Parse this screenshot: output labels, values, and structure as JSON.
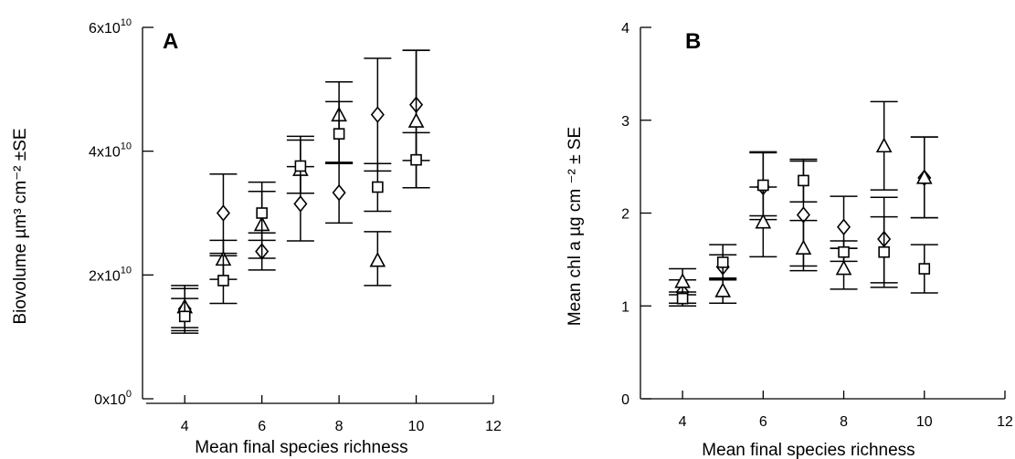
{
  "chart_data": [
    {
      "type": "scatter",
      "panel_label": "A",
      "xlabel": "Mean final species richness",
      "ylabel": "Biovolume µm³ cm⁻² ±SE",
      "xlim": [
        3,
        12
      ],
      "ylim": [
        0,
        60000000000
      ],
      "x_ticks": [
        4,
        6,
        8,
        10,
        12
      ],
      "y_ticks": [
        0,
        20000000000,
        40000000000,
        60000000000
      ],
      "y_tick_labels": [
        {
          "mantissa": "0x10",
          "exp": "0"
        },
        {
          "mantissa": "2x10",
          "exp": "10"
        },
        {
          "mantissa": "4x10",
          "exp": "10"
        },
        {
          "mantissa": "6x10",
          "exp": "10"
        }
      ],
      "grid": false,
      "series": [
        {
          "marker": "diamond",
          "points": [
            {
              "x": 4,
              "y": 14500000000,
              "lo": 11500000000,
              "hi": 17800000000
            },
            {
              "x": 5,
              "y": 30000000000,
              "lo": 23500000000,
              "hi": 36300000000
            },
            {
              "x": 6,
              "y": 23800000000,
              "lo": 20800000000,
              "hi": 26800000000
            },
            {
              "x": 7,
              "y": 31500000000,
              "lo": 25500000000,
              "hi": 37500000000
            },
            {
              "x": 8,
              "y": 33300000000,
              "lo": 28400000000,
              "hi": 38200000000
            },
            {
              "x": 9,
              "y": 45900000000,
              "lo": 36800000000,
              "hi": 55000000000
            },
            {
              "x": 10,
              "y": 47500000000,
              "lo": 38500000000,
              "hi": 56300000000
            }
          ]
        },
        {
          "marker": "triangle",
          "points": [
            {
              "x": 4,
              "y": 14800000000,
              "lo": 10600000000,
              "hi": 18300000000
            },
            {
              "x": 5,
              "y": 22500000000,
              "lo": 19300000000,
              "hi": 25600000000
            },
            {
              "x": 6,
              "y": 28100000000,
              "lo": 22700000000,
              "hi": 33500000000
            },
            {
              "x": 7,
              "y": 37000000000,
              "lo": 33200000000,
              "hi": 41800000000
            },
            {
              "x": 8,
              "y": 45800000000,
              "lo": 38100000000,
              "hi": 51200000000
            },
            {
              "x": 9,
              "y": 22300000000,
              "lo": 18300000000,
              "hi": 27000000000
            },
            {
              "x": 10,
              "y": 44800000000,
              "lo": 34100000000,
              "hi": 56300000000
            }
          ]
        },
        {
          "marker": "square",
          "points": [
            {
              "x": 4,
              "y": 13300000000,
              "lo": 11000000000,
              "hi": 16200000000
            },
            {
              "x": 5,
              "y": 19100000000,
              "lo": 15400000000,
              "hi": 23100000000
            },
            {
              "x": 6,
              "y": 30000000000,
              "lo": 25600000000,
              "hi": 35000000000
            },
            {
              "x": 7,
              "y": 37600000000,
              "lo": 33200000000,
              "hi": 42400000000
            },
            {
              "x": 8,
              "y": 42800000000,
              "lo": 38000000000,
              "hi": 48000000000
            },
            {
              "x": 9,
              "y": 34200000000,
              "lo": 30300000000,
              "hi": 38000000000
            },
            {
              "x": 10,
              "y": 38600000000,
              "lo": 34100000000,
              "hi": 43000000000
            }
          ]
        }
      ]
    },
    {
      "type": "scatter",
      "panel_label": "B",
      "xlabel": "Mean final species richness",
      "ylabel": "Mean chl a µg cm ⁻² ± SE",
      "xlim": [
        3,
        12
      ],
      "ylim": [
        0,
        4
      ],
      "x_ticks": [
        4,
        6,
        8,
        10,
        12
      ],
      "y_ticks": [
        0,
        1,
        2,
        3,
        4
      ],
      "grid": false,
      "series": [
        {
          "marker": "diamond",
          "points": [
            {
              "x": 4,
              "y": 1.15,
              "lo": 1.03,
              "hi": 1.28
            },
            {
              "x": 5,
              "y": 1.42,
              "lo": 1.3,
              "hi": 1.55
            },
            {
              "x": 6,
              "y": 2.28,
              "lo": 1.93,
              "hi": 2.66
            },
            {
              "x": 7,
              "y": 1.98,
              "lo": 1.43,
              "hi": 2.56
            },
            {
              "x": 8,
              "y": 1.85,
              "lo": 1.62,
              "hi": 2.18
            },
            {
              "x": 9,
              "y": 1.72,
              "lo": 1.25,
              "hi": 2.17
            },
            {
              "x": 10,
              "y": 2.38,
              "lo": 1.95,
              "hi": 2.82
            }
          ]
        },
        {
          "marker": "triangle",
          "points": [
            {
              "x": 4,
              "y": 1.26,
              "lo": 1.12,
              "hi": 1.4
            },
            {
              "x": 5,
              "y": 1.16,
              "lo": 1.03,
              "hi": 1.29
            },
            {
              "x": 6,
              "y": 1.9,
              "lo": 1.53,
              "hi": 2.28
            },
            {
              "x": 7,
              "y": 1.62,
              "lo": 1.38,
              "hi": 1.92
            },
            {
              "x": 8,
              "y": 1.4,
              "lo": 1.18,
              "hi": 1.62
            },
            {
              "x": 9,
              "y": 2.72,
              "lo": 2.25,
              "hi": 3.2
            },
            {
              "x": 10,
              "y": 2.38,
              "lo": 1.95,
              "hi": 2.82
            }
          ]
        },
        {
          "marker": "square",
          "points": [
            {
              "x": 4,
              "y": 1.08,
              "lo": 1.0,
              "hi": 1.15
            },
            {
              "x": 5,
              "y": 1.47,
              "lo": 1.28,
              "hi": 1.66
            },
            {
              "x": 6,
              "y": 2.3,
              "lo": 1.97,
              "hi": 2.65
            },
            {
              "x": 7,
              "y": 2.35,
              "lo": 2.12,
              "hi": 2.58
            },
            {
              "x": 8,
              "y": 1.58,
              "lo": 1.48,
              "hi": 1.7
            },
            {
              "x": 9,
              "y": 1.58,
              "lo": 1.2,
              "hi": 1.96
            },
            {
              "x": 10,
              "y": 1.4,
              "lo": 1.14,
              "hi": 1.66
            }
          ]
        }
      ]
    }
  ]
}
